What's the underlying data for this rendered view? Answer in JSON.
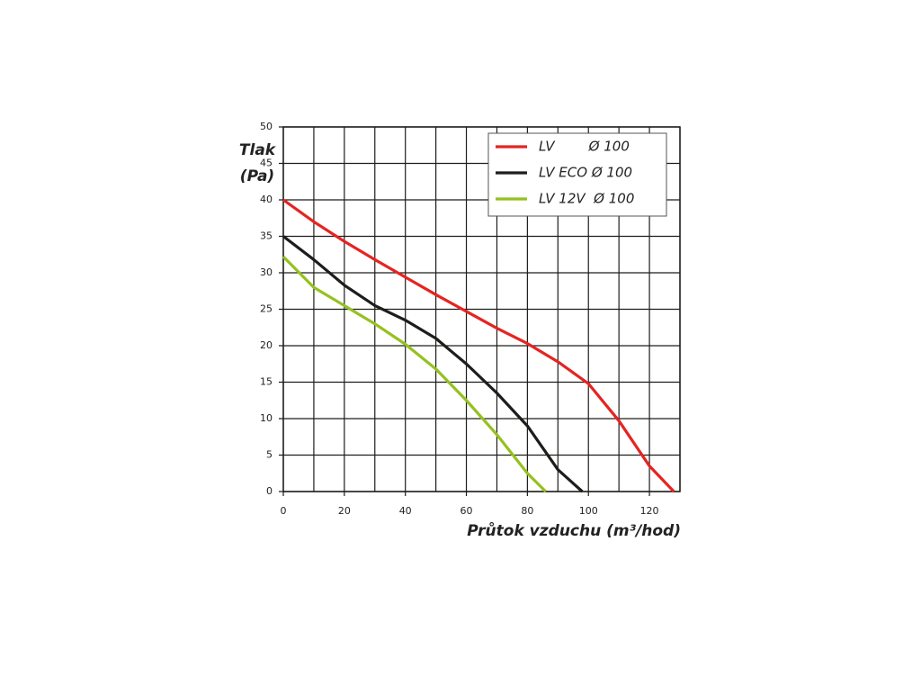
{
  "chart_data": {
    "type": "line",
    "y_label": "Tlak",
    "y_label_unit": "(Pa)",
    "x_label": "Průtok vzduchu (m³/hod)",
    "xlim": [
      0,
      130
    ],
    "ylim": [
      0,
      50
    ],
    "xticks": [
      0,
      20,
      40,
      60,
      80,
      100,
      120
    ],
    "yticks": [
      0,
      5,
      10,
      15,
      20,
      25,
      30,
      35,
      40,
      45,
      50
    ],
    "xgrid": [
      0,
      10,
      20,
      30,
      40,
      50,
      60,
      70,
      80,
      90,
      100,
      110,
      120,
      130
    ],
    "grid": true,
    "legend": "upper right",
    "series": [
      {
        "name": "LV        Ø 100",
        "color": "#e52421",
        "x": [
          0,
          10,
          20,
          30,
          40,
          50,
          60,
          70,
          80,
          90,
          100,
          110,
          120,
          128
        ],
        "values": [
          40,
          37,
          34.3,
          31.8,
          29.4,
          27,
          24.7,
          22.4,
          20.3,
          17.8,
          14.8,
          9.7,
          3.5,
          0
        ]
      },
      {
        "name": "LV ECO Ø 100",
        "color": "#1d1d1b",
        "x": [
          0,
          10,
          20,
          30,
          40,
          50,
          60,
          70,
          80,
          90,
          98
        ],
        "values": [
          35,
          31.8,
          28.3,
          25.5,
          23.5,
          21,
          17.5,
          13.5,
          9,
          3,
          0
        ]
      },
      {
        "name": "LV 12V  Ø 100",
        "color": "#95c11f",
        "x": [
          0,
          10,
          20,
          30,
          40,
          50,
          60,
          70,
          80,
          86
        ],
        "values": [
          32.2,
          28,
          25.5,
          23,
          20.2,
          16.8,
          12.5,
          7.8,
          2.5,
          0
        ]
      }
    ]
  }
}
